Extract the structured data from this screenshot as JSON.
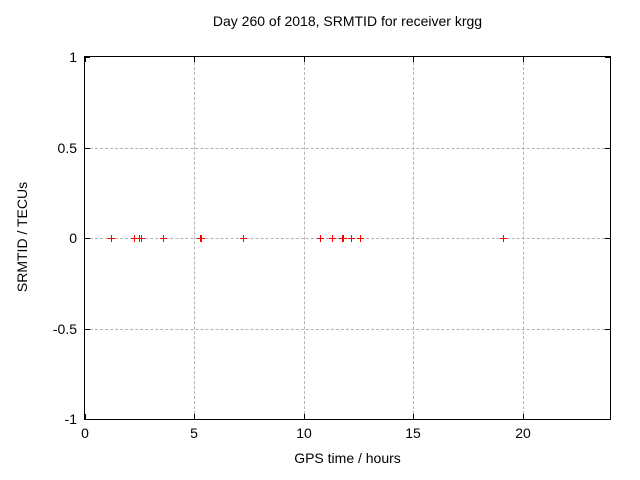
{
  "chart_data": {
    "type": "scatter",
    "title": "Day 260 of 2018, SRMTID for receiver krgg",
    "xlabel": "GPS time / hours",
    "ylabel": "SRMTID / TECUs",
    "xlim": [
      0,
      24
    ],
    "ylim": [
      -1,
      1
    ],
    "grid": true,
    "legend": false,
    "background_color": "#ffffff",
    "border_color": "#000000",
    "grid_color": "#b3b3b3",
    "xticks": [
      {
        "value": 0,
        "label": "0"
      },
      {
        "value": 5,
        "label": "5"
      },
      {
        "value": 10,
        "label": "10"
      },
      {
        "value": 15,
        "label": "15"
      },
      {
        "value": 20,
        "label": "20"
      }
    ],
    "yticks": [
      {
        "value": 1,
        "label": "1"
      },
      {
        "value": 0.5,
        "label": "0.5"
      },
      {
        "value": 0,
        "label": "0"
      },
      {
        "value": -0.5,
        "label": "-0.5"
      },
      {
        "value": -1,
        "label": "-1"
      }
    ],
    "series": [
      {
        "name": "SRMTID",
        "marker": "plus",
        "color": "#ff0000",
        "points": [
          [
            1.2,
            0
          ],
          [
            2.24,
            0
          ],
          [
            2.47,
            0
          ],
          [
            2.56,
            0
          ],
          [
            3.58,
            0
          ],
          [
            5.26,
            0
          ],
          [
            5.3,
            0
          ],
          [
            7.22,
            0
          ],
          [
            10.74,
            0
          ],
          [
            11.29,
            0
          ],
          [
            11.77,
            0
          ],
          [
            11.81,
            0
          ],
          [
            12.16,
            0
          ],
          [
            12.57,
            0
          ],
          [
            19.1,
            0
          ]
        ]
      }
    ]
  }
}
